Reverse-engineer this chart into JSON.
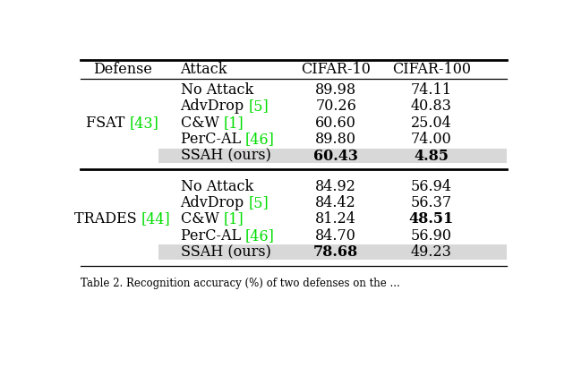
{
  "caption": "Table 2. Recognition accuracy (%) of two defenses on the ...",
  "header": [
    "Defense",
    "Attack",
    "CIFAR-10",
    "CIFAR-100"
  ],
  "sections": [
    {
      "defense_parts": [
        [
          "FSAT ",
          "black"
        ],
        [
          "[43]",
          "#00dd00"
        ]
      ],
      "rows": [
        {
          "parts": [
            [
              "No Attack",
              "black"
            ]
          ],
          "cifar10": "89.98",
          "cifar100": "74.11",
          "cifar10_bold": false,
          "cifar100_bold": false,
          "highlight": false
        },
        {
          "parts": [
            [
              "AdvDrop ",
              "black"
            ],
            [
              "[5]",
              "#00dd00"
            ]
          ],
          "cifar10": "70.26",
          "cifar100": "40.83",
          "cifar10_bold": false,
          "cifar100_bold": false,
          "highlight": false
        },
        {
          "parts": [
            [
              "C&W ",
              "black"
            ],
            [
              "[1]",
              "#00dd00"
            ]
          ],
          "cifar10": "60.60",
          "cifar100": "25.04",
          "cifar10_bold": false,
          "cifar100_bold": false,
          "highlight": false
        },
        {
          "parts": [
            [
              "PerC-AL ",
              "black"
            ],
            [
              "[46]",
              "#00dd00"
            ]
          ],
          "cifar10": "89.80",
          "cifar100": "74.00",
          "cifar10_bold": false,
          "cifar100_bold": false,
          "highlight": false
        },
        {
          "parts": [
            [
              "SSAH (ours)",
              "black"
            ]
          ],
          "cifar10": "60.43",
          "cifar100": "4.85",
          "cifar10_bold": true,
          "cifar100_bold": true,
          "highlight": true
        }
      ]
    },
    {
      "defense_parts": [
        [
          "TRADES ",
          "black"
        ],
        [
          "[44]",
          "#00dd00"
        ]
      ],
      "rows": [
        {
          "parts": [
            [
              "No Attack",
              "black"
            ]
          ],
          "cifar10": "84.92",
          "cifar100": "56.94",
          "cifar10_bold": false,
          "cifar100_bold": false,
          "highlight": false
        },
        {
          "parts": [
            [
              "AdvDrop ",
              "black"
            ],
            [
              "[5]",
              "#00dd00"
            ]
          ],
          "cifar10": "84.42",
          "cifar100": "56.37",
          "cifar10_bold": false,
          "cifar100_bold": false,
          "highlight": false
        },
        {
          "parts": [
            [
              "C&W ",
              "black"
            ],
            [
              "[1]",
              "#00dd00"
            ]
          ],
          "cifar10": "81.24",
          "cifar100": "48.51",
          "cifar10_bold": false,
          "cifar100_bold": true,
          "highlight": false
        },
        {
          "parts": [
            [
              "PerC-AL ",
              "black"
            ],
            [
              "[46]",
              "#00dd00"
            ]
          ],
          "cifar10": "84.70",
          "cifar100": "56.90",
          "cifar10_bold": false,
          "cifar100_bold": false,
          "highlight": false
        },
        {
          "parts": [
            [
              "SSAH (ours)",
              "black"
            ]
          ],
          "cifar10": "78.68",
          "cifar100": "49.23",
          "cifar10_bold": true,
          "cifar100_bold": false,
          "highlight": true
        }
      ]
    }
  ],
  "highlight_color": "#d8d8d8",
  "background_color": "#ffffff",
  "font_size": 11.5,
  "header_font_size": 11.5,
  "caption_font_size": 8.5
}
